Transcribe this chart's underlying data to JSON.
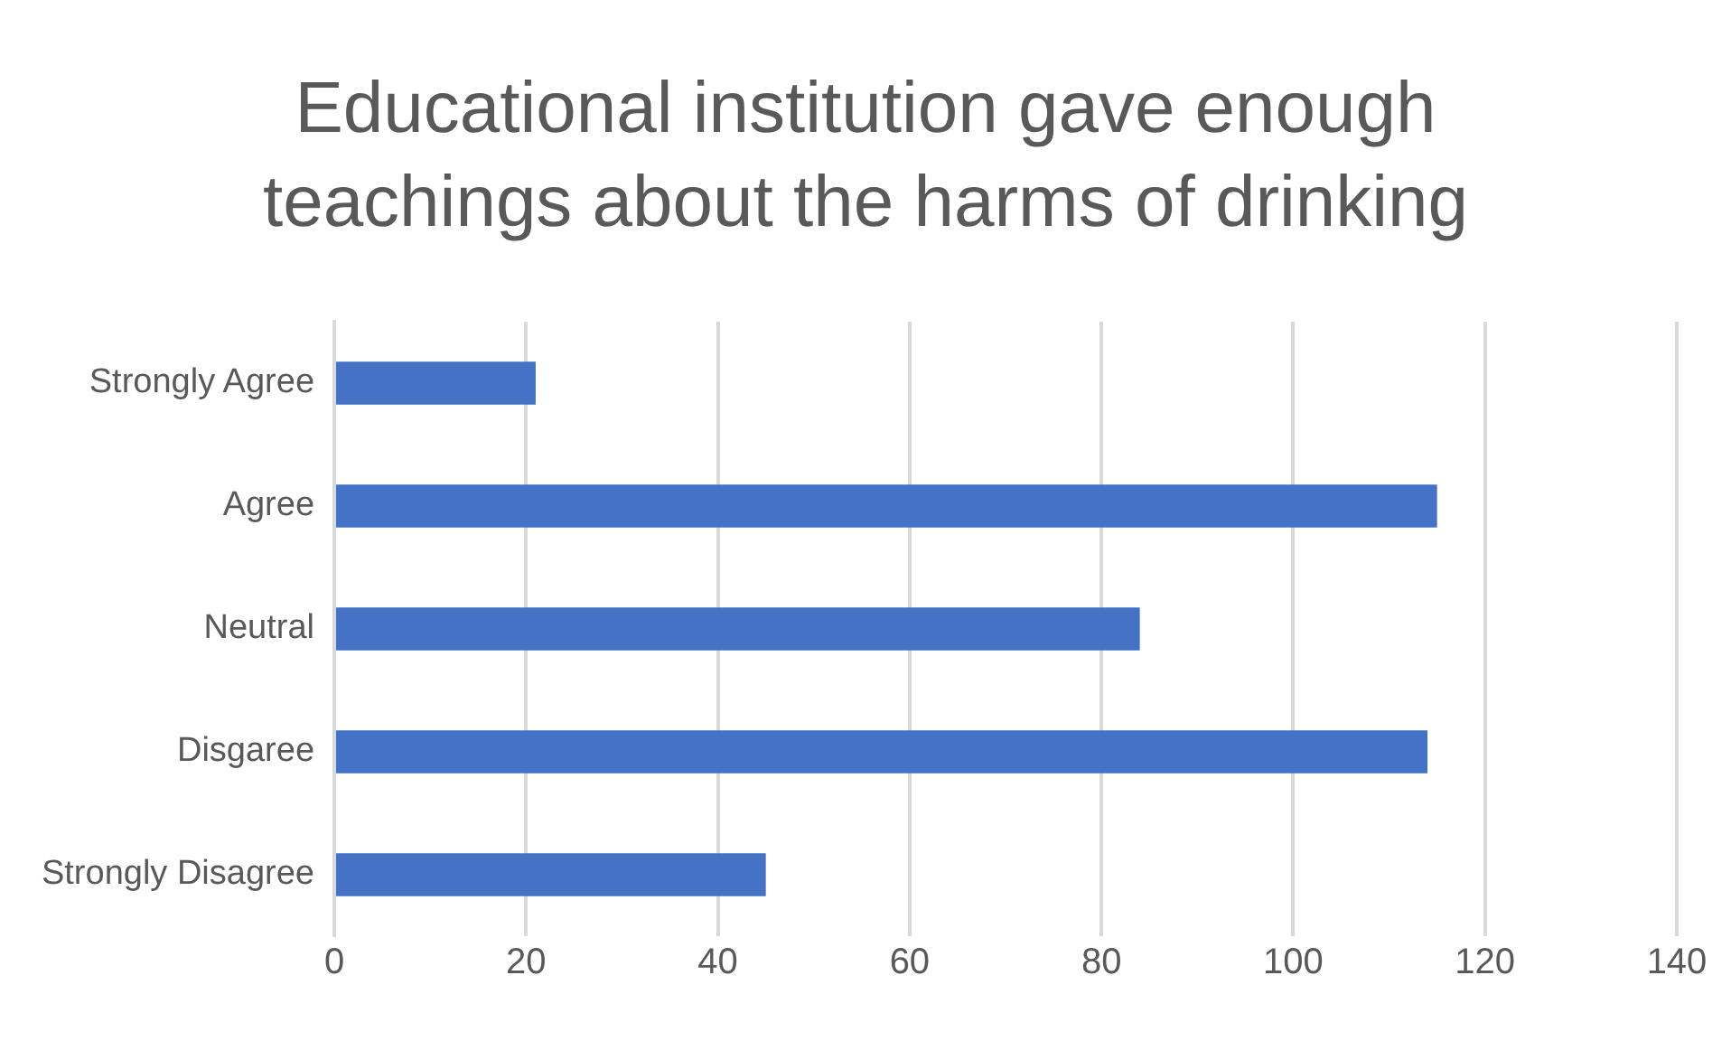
{
  "chart_data": {
    "type": "bar",
    "orientation": "horizontal",
    "title": "Educational institution gave enough teachings about the harms of drinking",
    "categories": [
      "Strongly Agree",
      "Agree",
      "Neutral",
      "Disgaree",
      "Strongly Disagree"
    ],
    "values": [
      21,
      115,
      84,
      114,
      45
    ],
    "color": "#4472c4",
    "xlim": [
      0,
      140
    ],
    "xticks": [
      0,
      20,
      40,
      60,
      80,
      100,
      120,
      140
    ],
    "grid": "x"
  }
}
